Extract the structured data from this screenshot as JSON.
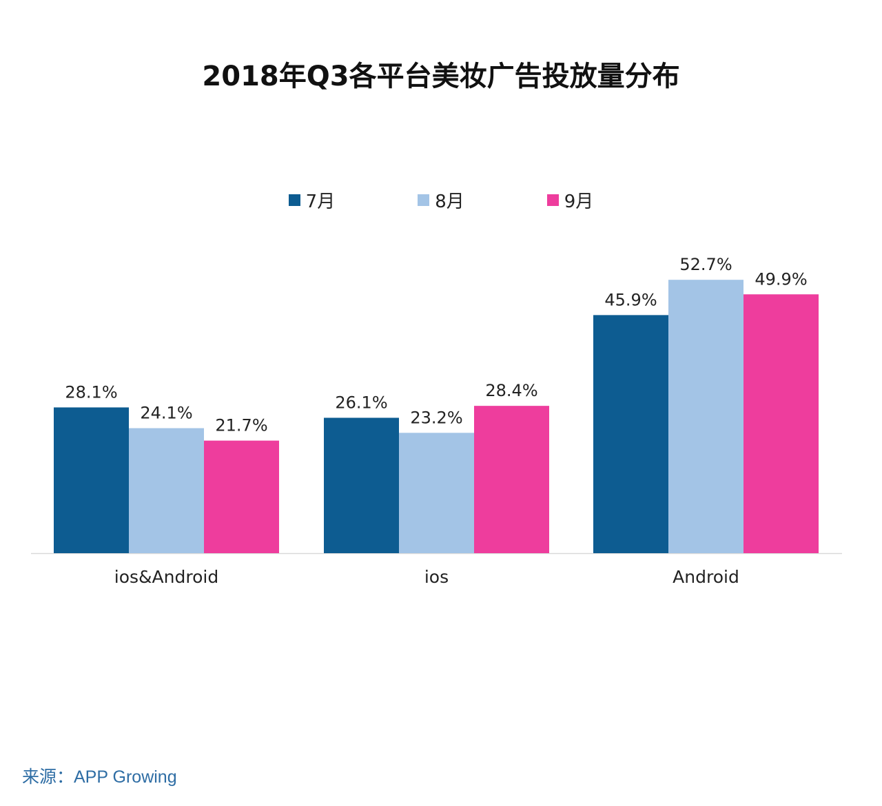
{
  "chart_data": {
    "type": "bar",
    "title": "2018年Q3各平台美妆广告投放量分布",
    "categories": [
      "ios&Android",
      "ios",
      "Android"
    ],
    "series": [
      {
        "name": "7月",
        "color": "#0d5c91",
        "values": [
          28.1,
          26.1,
          45.9
        ],
        "labels": [
          "28.1%",
          "26.1%",
          "45.9%"
        ]
      },
      {
        "name": "8月",
        "color": "#a3c4e6",
        "values": [
          24.1,
          23.2,
          52.7
        ],
        "labels": [
          "24.1%",
          "23.2%",
          "52.7%"
        ]
      },
      {
        "name": "9月",
        "color": "#ee3d9d",
        "values": [
          21.7,
          28.4,
          49.9
        ],
        "labels": [
          "21.7%",
          "28.4%",
          "49.9%"
        ]
      }
    ],
    "unit": "%",
    "ylim": [
      0,
      60
    ],
    "grid": false,
    "legend_position": "top-center"
  },
  "source": "来源：APP Growing"
}
